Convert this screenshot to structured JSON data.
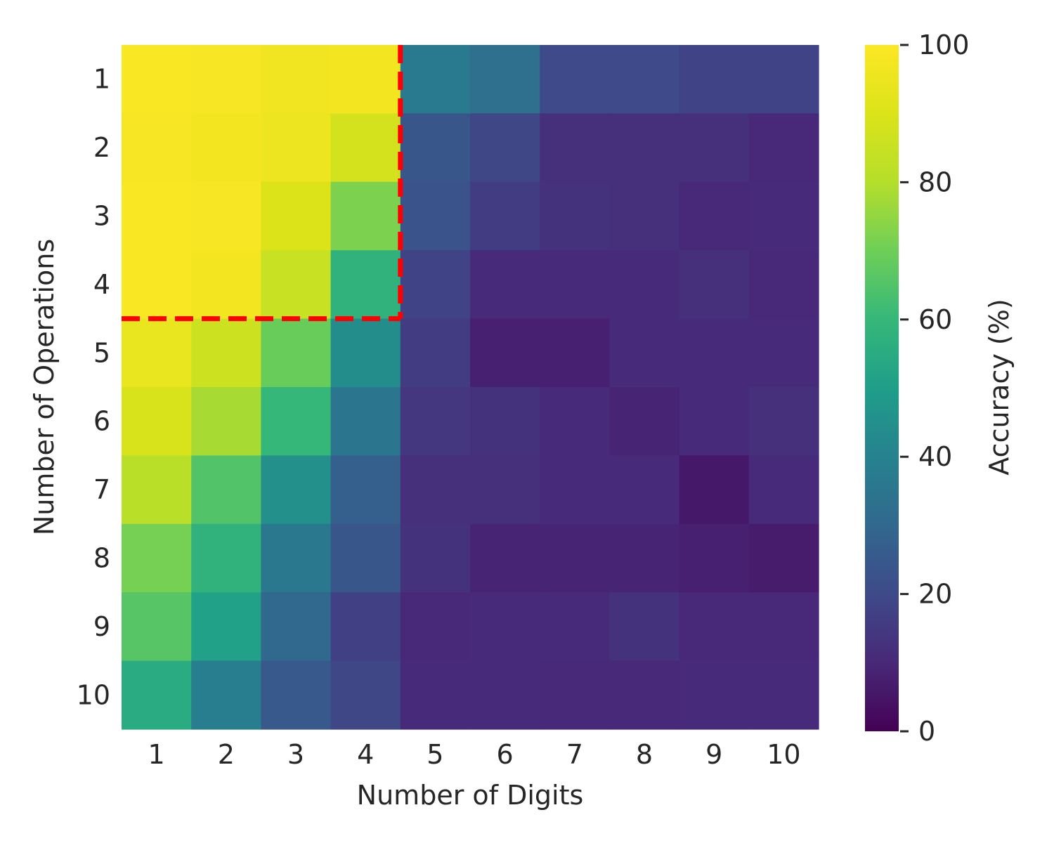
{
  "chart_data": {
    "type": "heatmap",
    "xlabel": "Number of Digits",
    "ylabel": "Number of Operations",
    "x_categories": [
      "1",
      "2",
      "3",
      "4",
      "5",
      "6",
      "7",
      "8",
      "9",
      "10"
    ],
    "y_categories": [
      "1",
      "2",
      "3",
      "4",
      "5",
      "6",
      "7",
      "8",
      "9",
      "10"
    ],
    "values": [
      [
        99,
        98,
        96,
        97,
        37,
        33,
        20,
        20,
        18,
        18
      ],
      [
        98,
        97,
        95,
        88,
        24,
        19,
        12,
        12,
        12,
        10
      ],
      [
        99,
        98,
        90,
        72,
        23,
        16,
        13,
        12,
        10,
        11
      ],
      [
        99,
        97,
        85,
        58,
        18,
        11,
        11,
        11,
        12,
        10
      ],
      [
        94,
        86,
        69,
        44,
        16,
        8,
        8,
        11,
        11,
        11
      ],
      [
        89,
        78,
        60,
        35,
        14,
        13,
        11,
        9,
        11,
        12
      ],
      [
        81,
        65,
        45,
        27,
        12,
        12,
        11,
        11,
        6,
        11
      ],
      [
        71,
        58,
        36,
        24,
        13,
        9,
        9,
        9,
        8,
        7
      ],
      [
        66,
        51,
        30,
        17,
        10,
        11,
        11,
        13,
        10,
        10
      ],
      [
        55,
        38,
        25,
        19,
        11,
        11,
        10,
        10,
        11,
        11
      ]
    ],
    "colormap": "viridis",
    "vmin": 0,
    "vmax": 100,
    "colorbar": {
      "label": "Accuracy (%)",
      "ticks": [
        0,
        20,
        40,
        60,
        80,
        100
      ]
    },
    "annotation": {
      "style": "dashed",
      "color": "#ff0000",
      "region_digits": [
        1,
        4
      ],
      "region_operations": [
        1,
        4
      ]
    }
  }
}
